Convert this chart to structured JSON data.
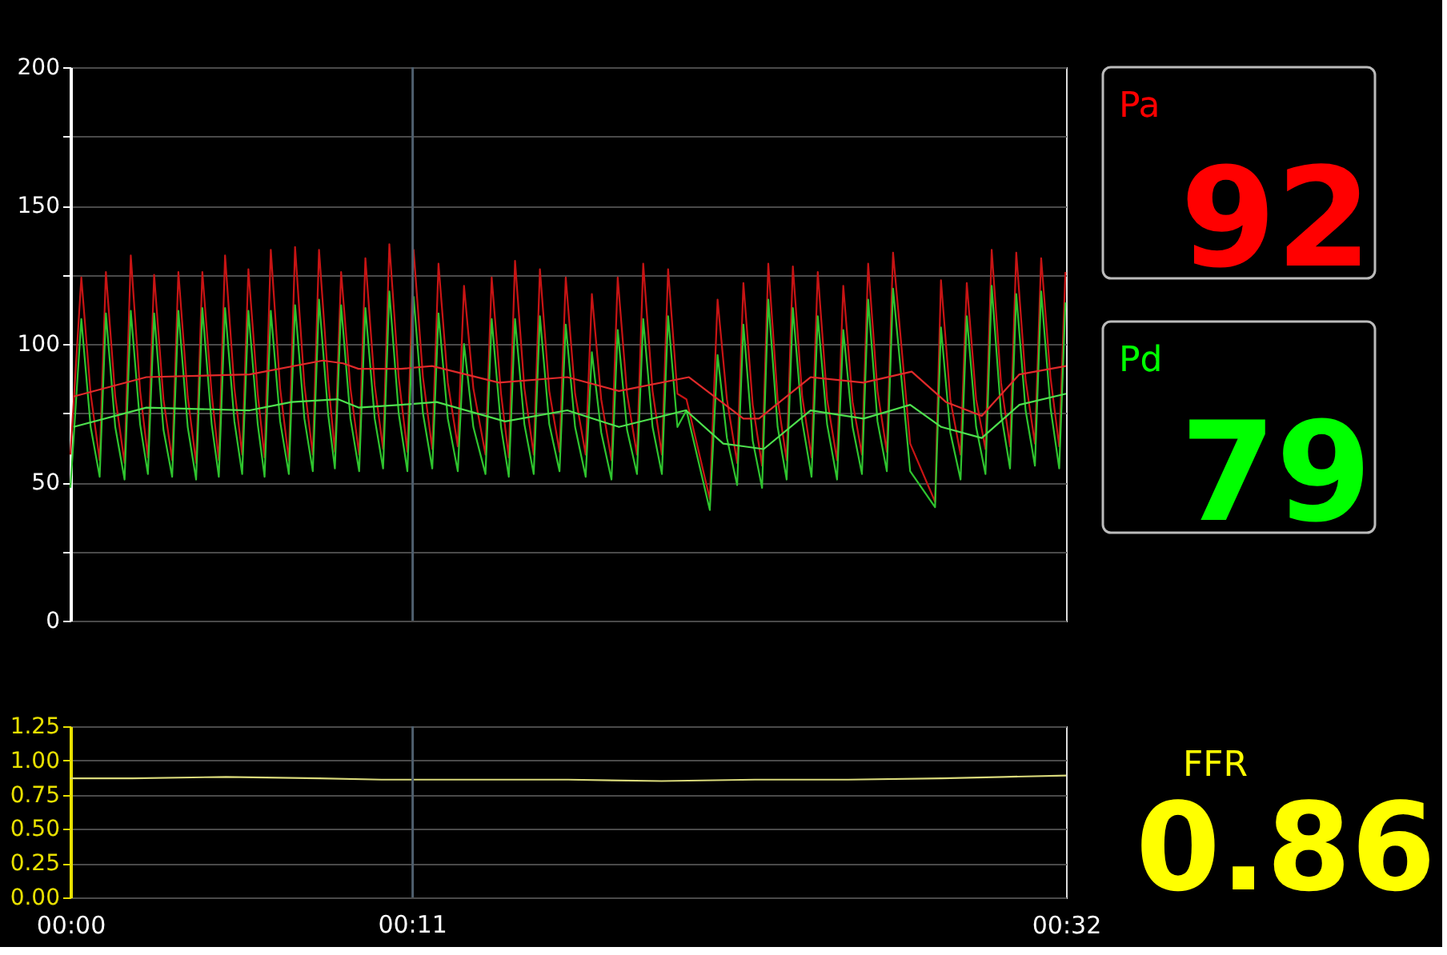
{
  "chart_data": [
    {
      "type": "line",
      "xlim": [
        0,
        32
      ],
      "ylim": [
        0,
        200
      ],
      "yticks": [
        0,
        {
          "value": 25,
          "label": null
        },
        50,
        {
          "value": 75,
          "label": null
        },
        100,
        {
          "value": 125,
          "label": null
        },
        150,
        {
          "value": 175,
          "label": null
        },
        200
      ],
      "grid": "y",
      "tick_labels": "y",
      "line_style": "solid",
      "ref_lines": [
        {
          "axis": "x",
          "value": 11,
          "label": null,
          "color": "#4f5f6e"
        }
      ],
      "series": [
        {
          "color": "#c81414",
          "x": [
            0,
            0.35,
            0.65,
            0.94,
            1.14,
            1.44,
            1.74,
            1.94,
            2.24,
            2.49,
            2.69,
            2.99,
            3.27,
            3.47,
            3.77,
            4.04,
            4.24,
            4.54,
            4.77,
            4.97,
            5.27,
            5.52,
            5.72,
            6.02,
            6.24,
            6.44,
            6.74,
            7.02,
            7.22,
            7.52,
            7.79,
            7.99,
            8.29,
            8.5,
            8.7,
            9.0,
            9.28,
            9.48,
            9.78,
            10.05,
            10.25,
            10.55,
            10.83,
            11.03,
            11.33,
            11.63,
            11.83,
            12.13,
            12.45,
            12.65,
            12.95,
            13.34,
            13.54,
            13.84,
            14.09,
            14.29,
            14.59,
            14.89,
            15.09,
            15.39,
            15.72,
            15.92,
            16.22,
            16.56,
            16.76,
            17.06,
            17.39,
            17.59,
            17.89,
            18.21,
            18.41,
            18.71,
            19.01,
            19.21,
            19.51,
            19.8,
            20.55,
            20.8,
            21.1,
            21.43,
            21.63,
            21.93,
            22.23,
            22.43,
            22.73,
            23.02,
            23.22,
            23.52,
            23.82,
            24.02,
            24.32,
            24.64,
            24.84,
            25.14,
            25.44,
            25.64,
            25.94,
            26.24,
            26.44,
            26.99,
            27.79,
            27.98,
            28.28,
            28.61,
            28.81,
            29.11,
            29.41,
            29.61,
            29.91,
            30.2,
            30.4,
            30.7,
            31.0,
            31.2,
            31.5,
            31.78,
            31.98
          ],
          "values": [
            60,
            124,
            82,
            58,
            126,
            81,
            57,
            132,
            83,
            59,
            125,
            80,
            58,
            126,
            81,
            57,
            126,
            82,
            58,
            132,
            84,
            60,
            127,
            82,
            59,
            134,
            84,
            58,
            135,
            85,
            60,
            134,
            86,
            61,
            126,
            84,
            60,
            131,
            85,
            62,
            136,
            88,
            61,
            134,
            88,
            62,
            129,
            86,
            63,
            121,
            84,
            60,
            124,
            82,
            59,
            130,
            84,
            60,
            127,
            83,
            61,
            124,
            82,
            60,
            118,
            80,
            58,
            124,
            82,
            60,
            129,
            83,
            60,
            127,
            82,
            80,
            44,
            116,
            80,
            57,
            122,
            78,
            56,
            129,
            80,
            58,
            128,
            81,
            59,
            126,
            80,
            58,
            121,
            79,
            60,
            129,
            83,
            61,
            133,
            64,
            43,
            123,
            80,
            60,
            122,
            80,
            62,
            134,
            86,
            63,
            133,
            87,
            64,
            131,
            88,
            63,
            126
          ]
        },
        {
          "color": "#2fc42f",
          "x": [
            0,
            0.35,
            0.65,
            0.94,
            1.14,
            1.44,
            1.74,
            1.94,
            2.24,
            2.49,
            2.69,
            2.99,
            3.27,
            3.47,
            3.77,
            4.04,
            4.24,
            4.54,
            4.77,
            4.97,
            5.27,
            5.52,
            5.72,
            6.02,
            6.24,
            6.44,
            6.74,
            7.02,
            7.22,
            7.52,
            7.79,
            7.99,
            8.29,
            8.5,
            8.7,
            9.0,
            9.28,
            9.48,
            9.78,
            10.05,
            10.25,
            10.55,
            10.83,
            11.03,
            11.33,
            11.63,
            11.83,
            12.13,
            12.45,
            12.65,
            12.95,
            13.34,
            13.54,
            13.84,
            14.09,
            14.29,
            14.59,
            14.89,
            15.09,
            15.39,
            15.72,
            15.92,
            16.22,
            16.56,
            16.76,
            17.06,
            17.39,
            17.59,
            17.89,
            18.21,
            18.41,
            18.71,
            19.01,
            19.21,
            19.51,
            19.8,
            20.55,
            20.8,
            21.1,
            21.43,
            21.63,
            21.93,
            22.23,
            22.43,
            22.73,
            23.02,
            23.22,
            23.52,
            23.82,
            24.02,
            24.32,
            24.64,
            24.84,
            25.14,
            25.44,
            25.64,
            25.94,
            26.24,
            26.44,
            26.99,
            27.79,
            27.98,
            28.28,
            28.61,
            28.81,
            29.11,
            29.41,
            29.61,
            29.91,
            30.2,
            30.4,
            30.7,
            31.0,
            31.2,
            31.5,
            31.78,
            31.98
          ],
          "values": [
            48,
            109,
            70,
            52,
            111,
            70,
            51,
            112,
            71,
            53,
            111,
            69,
            52,
            112,
            70,
            51,
            113,
            71,
            52,
            113,
            72,
            53,
            112,
            71,
            52,
            112,
            72,
            53,
            114,
            73,
            54,
            116,
            74,
            55,
            114,
            73,
            54,
            113,
            73,
            55,
            119,
            75,
            54,
            117,
            75,
            55,
            111,
            73,
            54,
            100,
            70,
            53,
            109,
            70,
            52,
            109,
            71,
            53,
            110,
            71,
            54,
            107,
            70,
            52,
            97,
            68,
            51,
            105,
            69,
            53,
            109,
            70,
            53,
            110,
            70,
            76,
            40,
            96,
            66,
            49,
            107,
            65,
            48,
            116,
            70,
            51,
            113,
            72,
            52,
            110,
            71,
            51,
            105,
            70,
            53,
            116,
            72,
            54,
            120,
            54,
            41,
            106,
            68,
            51,
            110,
            70,
            53,
            121,
            75,
            55,
            118,
            76,
            56,
            119,
            77,
            55,
            115
          ]
        },
        {
          "color": "#e02a2a",
          "x": [
            0.1,
            2.44,
            5.76,
            8.11,
            8.76,
            9.26,
            10.62,
            11.62,
            13.77,
            15.97,
            17.63,
            19.88,
            21.63,
            22.13,
            23.79,
            25.49,
            27.04,
            28.14,
            29.29,
            30.5,
            32
          ],
          "values": [
            81,
            88,
            89,
            94,
            93,
            91,
            91,
            92,
            86,
            88,
            83,
            88,
            73,
            73,
            88,
            86,
            90,
            79,
            74,
            89,
            92
          ]
        },
        {
          "color": "#4ee04e",
          "x": [
            0.1,
            2.44,
            5.76,
            7.11,
            8.61,
            9.26,
            10.62,
            11.77,
            13.97,
            15.97,
            17.63,
            19.78,
            20.98,
            21.63,
            22.28,
            23.79,
            25.49,
            26.99,
            27.99,
            29.29,
            30.5,
            32
          ],
          "values": [
            70,
            77,
            76,
            79,
            80,
            77,
            78,
            79,
            72,
            76,
            70,
            76,
            64,
            63,
            62,
            76,
            73,
            78,
            70,
            66,
            78,
            82
          ]
        }
      ]
    },
    {
      "type": "line",
      "xlim": [
        0,
        32
      ],
      "xticks": [
        {
          "value": 0,
          "label": "00:00"
        },
        {
          "value": 32,
          "label": "00:32"
        }
      ],
      "ylim": [
        0,
        1.25
      ],
      "yticks": [
        {
          "value": 0,
          "label": "0.00"
        },
        {
          "value": 0.25,
          "label": "0.25"
        },
        {
          "value": 0.5,
          "label": "0.50"
        },
        {
          "value": 0.75,
          "label": "0.75"
        },
        {
          "value": 1,
          "label": "1.00"
        },
        {
          "value": 1.25,
          "label": "1.25"
        }
      ],
      "grid": "y",
      "line_style": "solid",
      "ref_lines": [
        {
          "axis": "x",
          "value": 11,
          "label": "00:11",
          "color": "#4f5f6e"
        }
      ],
      "series": [
        {
          "color": "#d9d97a",
          "x": [
            0,
            2,
            5,
            8,
            10,
            13,
            16,
            19,
            22,
            25,
            28,
            30,
            32
          ],
          "values": [
            0.87,
            0.87,
            0.88,
            0.87,
            0.86,
            0.86,
            0.86,
            0.85,
            0.86,
            0.86,
            0.87,
            0.88,
            0.89
          ]
        }
      ]
    },
    {
      "type": "other",
      "categories": [
        "Pa",
        "Pd"
      ],
      "values": [
        92,
        79
      ],
      "colors": [
        "#ff0000",
        "#00ff00"
      ],
      "data_labels": true
    },
    {
      "type": "other",
      "categories": [
        "FFR"
      ],
      "values": [
        0.86
      ],
      "colors": [
        "#ffff00"
      ],
      "data_labels": true
    }
  ]
}
